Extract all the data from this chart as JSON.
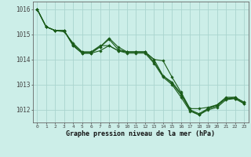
{
  "xlabel": "Graphe pression niveau de la mer (hPa)",
  "background_color": "#cceee8",
  "grid_color": "#aad4ce",
  "line_color": "#1a5c1a",
  "xlim": [
    -0.5,
    23.5
  ],
  "ylim": [
    1011.5,
    1016.3
  ],
  "yticks": [
    1012,
    1013,
    1014,
    1015,
    1016
  ],
  "xticks": [
    0,
    1,
    2,
    3,
    4,
    5,
    6,
    7,
    8,
    9,
    10,
    11,
    12,
    13,
    14,
    15,
    16,
    17,
    18,
    19,
    20,
    21,
    22,
    23
  ],
  "lines": [
    [
      1016.0,
      1015.3,
      1015.15,
      1015.15,
      1014.6,
      1014.3,
      1014.3,
      1014.5,
      1014.85,
      1014.5,
      1014.3,
      1014.3,
      1014.3,
      1014.0,
      1013.35,
      1013.1,
      1012.65,
      1012.0,
      1011.85,
      1012.05,
      1012.2,
      1012.5,
      1012.5,
      1012.3
    ],
    [
      1016.0,
      1015.3,
      1015.15,
      1015.1,
      1014.65,
      1014.3,
      1014.3,
      1014.55,
      1014.55,
      1014.35,
      1014.3,
      1014.3,
      1014.3,
      1014.0,
      1013.95,
      1013.3,
      1012.7,
      1012.05,
      1012.05,
      1012.1,
      1012.2,
      1012.45,
      1012.5,
      1012.3
    ],
    [
      1016.0,
      1015.3,
      1015.15,
      1015.15,
      1014.55,
      1014.25,
      1014.25,
      1014.5,
      1014.8,
      1014.4,
      1014.3,
      1014.3,
      1014.3,
      1013.9,
      1013.35,
      1013.05,
      1012.6,
      1012.0,
      1011.8,
      1012.05,
      1012.15,
      1012.45,
      1012.45,
      1012.25
    ],
    [
      1016.0,
      1015.3,
      1015.15,
      1015.15,
      1014.55,
      1014.25,
      1014.25,
      1014.35,
      1014.55,
      1014.35,
      1014.25,
      1014.25,
      1014.25,
      1013.85,
      1013.3,
      1013.0,
      1012.5,
      1011.95,
      1011.8,
      1012.0,
      1012.1,
      1012.4,
      1012.45,
      1012.25
    ]
  ]
}
